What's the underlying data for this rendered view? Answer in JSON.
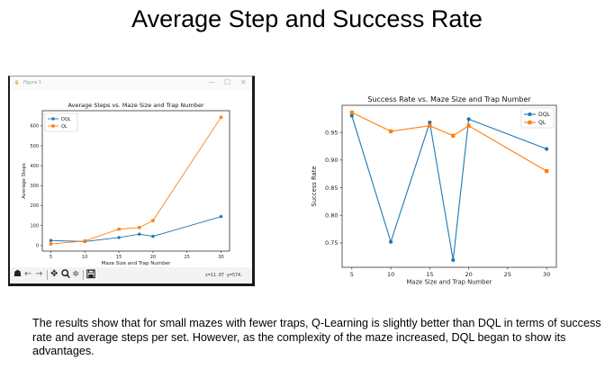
{
  "slide": {
    "title": "Average Step and Success Rate",
    "caption": "The results show that for small mazes with fewer traps, Q-Learning is slightly better than DQL in terms of success rate and average steps per set. However, as the complexity of the maze increased, DQL began to show its advantages."
  },
  "window": {
    "title": "Figure 1",
    "app_icon": "matplotlib-icon",
    "controls": {
      "minimize": "—",
      "maximize": "☐",
      "close": "✕"
    },
    "toolbar": {
      "home": "☗",
      "back": "←",
      "forward": "→",
      "pan": "✥",
      "zoom": "🔍",
      "configure": "≑",
      "save": "🖫",
      "coordinates": "x=11.07 y=574."
    }
  },
  "colors": {
    "dql": "#1f77b4",
    "ql": "#ff7f0e"
  },
  "chart_data": [
    {
      "type": "line",
      "title": "Average Steps vs. Maze Size and Trap Number",
      "xlabel": "Maze Size and Trap Number",
      "ylabel": "Average Steps",
      "x": [
        5,
        10,
        15,
        18,
        20,
        30
      ],
      "series": [
        {
          "name": "DQL",
          "marker": "circle",
          "values": [
            25,
            20,
            40,
            57,
            46,
            145
          ]
        },
        {
          "name": "QL",
          "marker": "square",
          "values": [
            8,
            23,
            82,
            90,
            125,
            643
          ]
        }
      ],
      "xticks": [
        5,
        10,
        15,
        20,
        25,
        30
      ],
      "yticks": [
        0,
        100,
        200,
        300,
        400,
        500,
        600
      ],
      "xlim": [
        3.75,
        31.25
      ],
      "ylim": [
        -28,
        676
      ],
      "grid": false,
      "legend": "top-left"
    },
    {
      "type": "line",
      "title": "Success Rate vs. Maze Size and Trap Number",
      "xlabel": "Maze Size and Trap Number",
      "ylabel": "Success Rate",
      "x": [
        5,
        10,
        15,
        18,
        20,
        30
      ],
      "series": [
        {
          "name": "DQL",
          "marker": "circle",
          "values": [
            0.98,
            0.752,
            0.968,
            0.719,
            0.974,
            0.92
          ]
        },
        {
          "name": "QL",
          "marker": "square",
          "values": [
            0.986,
            0.952,
            0.962,
            0.944,
            0.962,
            0.88
          ]
        }
      ],
      "xticks": [
        5,
        10,
        15,
        20,
        25,
        30
      ],
      "yticks": [
        0.75,
        0.8,
        0.85,
        0.9,
        0.95
      ],
      "ytick_labels": [
        "0.75",
        "0.80",
        "0.85",
        "0.90",
        "0.95"
      ],
      "xlim": [
        3.75,
        31.25
      ],
      "ylim": [
        0.706,
        0.999
      ],
      "grid": false,
      "legend": "top-right"
    }
  ]
}
